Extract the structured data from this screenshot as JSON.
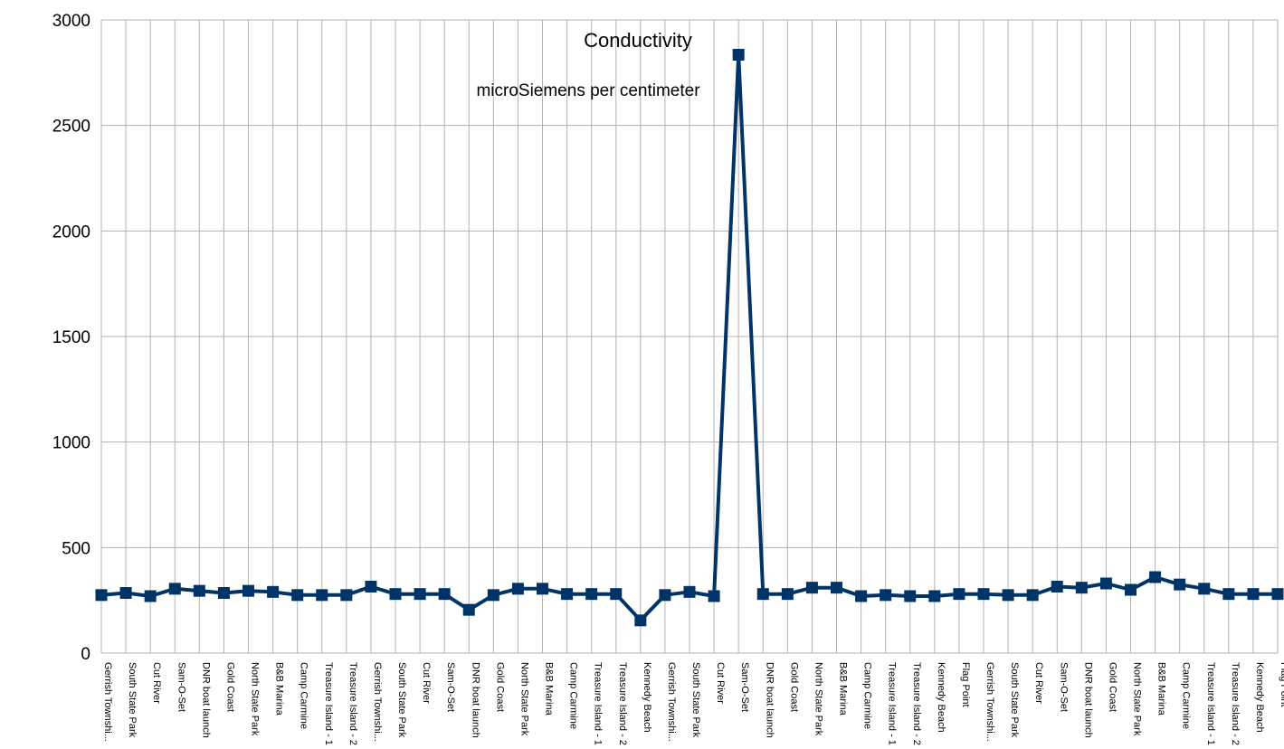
{
  "chart_data": {
    "type": "line",
    "title": "Conductivity",
    "subtitle": "microSiemens per centimeter",
    "xlabel": "",
    "ylabel": "",
    "ylim": [
      0,
      3000
    ],
    "yticks": [
      0,
      500,
      1000,
      1500,
      2000,
      2500,
      3000
    ],
    "grid": true,
    "legend": "none",
    "line_color": "#003366",
    "marker": "square",
    "categories": [
      "Gerrish Townshi...",
      "South State Park",
      "Cut River",
      "Sam-O-Set",
      "DNR boat launch",
      "Gold Coast",
      "North State Park",
      "B&B Marina",
      "Camp Carmine",
      "Treasure Island - 1",
      "Treasure Island - 2",
      "Gerrish Townshi...",
      "South State Park",
      "Cut River",
      "Sam-O-Set",
      "DNR boat launch",
      "Gold Coast",
      "North State Park",
      "B&B Marina",
      "Camp Carmine",
      "Treasure Island - 1",
      "Treasure Island - 2",
      "Kennedy Beach",
      "Gerrish Townshi...",
      "South State Park",
      "Cut River",
      "Sam-O-Set",
      "DNR boat launch",
      "Gold Coast",
      "North State Park",
      "B&B Marina",
      "Camp Carmine",
      "Treasure Island - 1",
      "Treasure Island - 2",
      "Kennedy Beach",
      "Flag Point",
      "Gerrish Townshi...",
      "South State Park",
      "Cut River",
      "Sam-O-Set",
      "DNR boat launch",
      "Gold Coast",
      "North State Park",
      "B&B Marina",
      "Camp Carmine",
      "Treasure Island - 1",
      "Treasure Island - 2",
      "Kennedy Beach",
      "Flag Point"
    ],
    "series": [
      {
        "values": [
          275,
          285,
          270,
          305,
          295,
          285,
          295,
          290,
          275,
          275,
          275,
          315,
          280,
          280,
          280,
          205,
          275,
          305,
          305,
          280,
          280,
          280,
          155,
          275,
          290,
          270,
          2835,
          280,
          280,
          310,
          310,
          270,
          275,
          270,
          270,
          280,
          280,
          275,
          275,
          315,
          310,
          330,
          300,
          360,
          325,
          305,
          280,
          280,
          280
        ]
      }
    ]
  }
}
